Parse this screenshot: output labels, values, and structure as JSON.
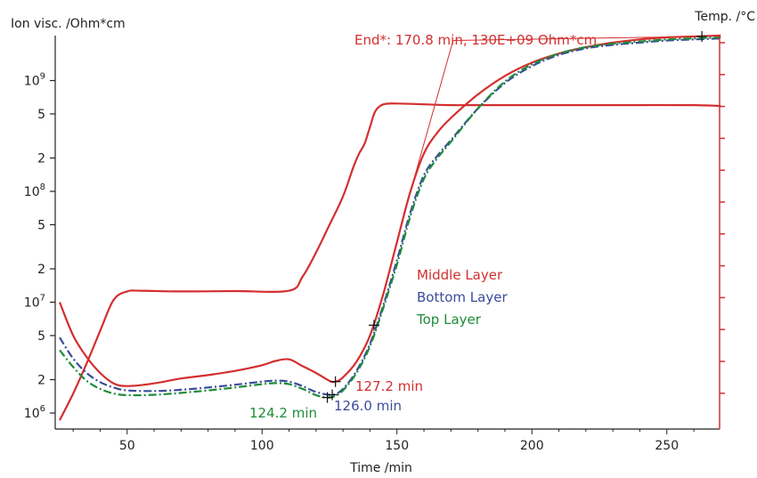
{
  "chart_data": {
    "type": "line",
    "xlabel": "Time /min",
    "ylabel_left": "Ion visc. /Ohm*cm",
    "ylabel_right": "Temp. /°C",
    "xlim": [
      25,
      270
    ],
    "ylim_log10": [
      5.92,
      9.42
    ],
    "x_ticks": [
      {
        "value": 50,
        "label": "50"
      },
      {
        "value": 100,
        "label": "100"
      },
      {
        "value": 150,
        "label": "150"
      },
      {
        "value": 200,
        "label": "200"
      },
      {
        "value": 250,
        "label": "250"
      }
    ],
    "y_ticks": [
      {
        "value": 1000000,
        "mant": "10",
        "exp": "6"
      },
      {
        "value": 2000000,
        "mant": "2",
        "exp": ""
      },
      {
        "value": 5000000,
        "mant": "5",
        "exp": ""
      },
      {
        "value": 10000000,
        "mant": "10",
        "exp": "7"
      },
      {
        "value": 20000000,
        "mant": "2",
        "exp": ""
      },
      {
        "value": 50000000,
        "mant": "5",
        "exp": ""
      },
      {
        "value": 100000000,
        "mant": "10",
        "exp": "8"
      },
      {
        "value": 200000000,
        "mant": "2",
        "exp": ""
      },
      {
        "value": 500000000,
        "mant": "5",
        "exp": ""
      },
      {
        "value": 1000000000,
        "mant": "10",
        "exp": "9"
      }
    ],
    "right_axis": {
      "color": "#d32f2f",
      "tick_count": 12,
      "labels_shown": false
    },
    "legend": {
      "position": "center-right",
      "entries": [
        {
          "label": "Middle Layer",
          "color": "#d32f2f"
        },
        {
          "label": "Bottom Layer",
          "color": "#3b4c9a"
        },
        {
          "label": "Top Layer",
          "color": "#1e8c3a"
        }
      ]
    },
    "series": [
      {
        "name": "Middle Layer",
        "axis": "left",
        "color": "#d32f2f",
        "style": "solid",
        "points": [
          [
            25,
            10000000
          ],
          [
            30,
            5000000
          ],
          [
            35,
            3200000
          ],
          [
            40,
            2300000
          ],
          [
            45,
            1850000
          ],
          [
            50,
            1750000
          ],
          [
            60,
            1850000
          ],
          [
            70,
            2050000
          ],
          [
            80,
            2200000
          ],
          [
            90,
            2400000
          ],
          [
            100,
            2700000
          ],
          [
            105,
            2950000
          ],
          [
            110,
            3050000
          ],
          [
            115,
            2650000
          ],
          [
            120,
            2300000
          ],
          [
            125,
            1950000
          ],
          [
            127.2,
            1920000
          ],
          [
            130,
            2100000
          ],
          [
            135,
            2900000
          ],
          [
            140,
            5000000
          ],
          [
            145,
            12000000
          ],
          [
            150,
            35000000
          ],
          [
            155,
            100000000
          ],
          [
            160,
            220000000
          ],
          [
            165,
            340000000
          ],
          [
            170,
            460000000
          ],
          [
            180,
            750000000
          ],
          [
            190,
            1100000000
          ],
          [
            200,
            1450000000
          ],
          [
            210,
            1750000000
          ],
          [
            220,
            2000000000
          ],
          [
            230,
            2200000000
          ],
          [
            240,
            2350000000
          ],
          [
            250,
            2450000000
          ],
          [
            260,
            2500000000
          ],
          [
            270,
            2550000000
          ]
        ]
      },
      {
        "name": "Bottom Layer",
        "axis": "left",
        "color": "#3b4c9a",
        "style": "dashdot",
        "points": [
          [
            25,
            4800000
          ],
          [
            30,
            3100000
          ],
          [
            35,
            2300000
          ],
          [
            40,
            1900000
          ],
          [
            45,
            1700000
          ],
          [
            50,
            1600000
          ],
          [
            60,
            1580000
          ],
          [
            70,
            1620000
          ],
          [
            80,
            1700000
          ],
          [
            90,
            1800000
          ],
          [
            100,
            1920000
          ],
          [
            105,
            1960000
          ],
          [
            110,
            1920000
          ],
          [
            115,
            1750000
          ],
          [
            120,
            1550000
          ],
          [
            126,
            1460000
          ],
          [
            130,
            1650000
          ],
          [
            135,
            2400000
          ],
          [
            140,
            4200000
          ],
          [
            145,
            9500000
          ],
          [
            150,
            24000000
          ],
          [
            155,
            65000000
          ],
          [
            160,
            140000000
          ],
          [
            165,
            210000000
          ],
          [
            170,
            290000000
          ],
          [
            180,
            560000000
          ],
          [
            190,
            950000000
          ],
          [
            200,
            1350000000
          ],
          [
            210,
            1700000000
          ],
          [
            220,
            1950000000
          ],
          [
            230,
            2100000000
          ],
          [
            240,
            2200000000
          ],
          [
            250,
            2300000000
          ],
          [
            260,
            2350000000
          ],
          [
            270,
            2400000000
          ]
        ]
      },
      {
        "name": "Top Layer",
        "axis": "left",
        "color": "#1e8c3a",
        "style": "dashdot",
        "points": [
          [
            25,
            3700000
          ],
          [
            30,
            2600000
          ],
          [
            35,
            1950000
          ],
          [
            40,
            1650000
          ],
          [
            45,
            1500000
          ],
          [
            50,
            1450000
          ],
          [
            60,
            1460000
          ],
          [
            70,
            1520000
          ],
          [
            80,
            1600000
          ],
          [
            90,
            1700000
          ],
          [
            100,
            1820000
          ],
          [
            105,
            1860000
          ],
          [
            110,
            1820000
          ],
          [
            115,
            1650000
          ],
          [
            120,
            1450000
          ],
          [
            124.2,
            1380000
          ],
          [
            127,
            1420000
          ],
          [
            130,
            1600000
          ],
          [
            135,
            2300000
          ],
          [
            140,
            4000000
          ],
          [
            145,
            9000000
          ],
          [
            150,
            22000000
          ],
          [
            155,
            60000000
          ],
          [
            160,
            130000000
          ],
          [
            165,
            200000000
          ],
          [
            170,
            280000000
          ],
          [
            180,
            560000000
          ],
          [
            190,
            980000000
          ],
          [
            200,
            1400000000
          ],
          [
            210,
            1750000000
          ],
          [
            220,
            2000000000
          ],
          [
            230,
            2150000000
          ],
          [
            240,
            2250000000
          ],
          [
            250,
            2350000000
          ],
          [
            260,
            2400000000
          ],
          [
            270,
            2450000000
          ]
        ]
      },
      {
        "name": "Temperature",
        "axis": "right",
        "color": "#d32f2f",
        "style": "solid",
        "points_on_left_scale": [
          [
            25,
            860000
          ],
          [
            30,
            1500000
          ],
          [
            35,
            2800000
          ],
          [
            40,
            5500000
          ],
          [
            45,
            10500000
          ],
          [
            50,
            12500000
          ],
          [
            55,
            12700000
          ],
          [
            70,
            12500000
          ],
          [
            90,
            12600000
          ],
          [
            110,
            12700000
          ],
          [
            115,
            17000000
          ],
          [
            120,
            28000000
          ],
          [
            125,
            50000000
          ],
          [
            130,
            90000000
          ],
          [
            134,
            170000000
          ],
          [
            136,
            220000000
          ],
          [
            138,
            270000000
          ],
          [
            140,
            380000000
          ],
          [
            142,
            530000000
          ],
          [
            145,
            610000000
          ],
          [
            150,
            620000000
          ],
          [
            160,
            610000000
          ],
          [
            170,
            600000000
          ],
          [
            180,
            600000000
          ],
          [
            200,
            600000000
          ],
          [
            220,
            600000000
          ],
          [
            240,
            600000000
          ],
          [
            260,
            600000000
          ],
          [
            270,
            590000000
          ]
        ]
      }
    ],
    "markers": [
      {
        "series": "Middle Layer",
        "x": 127.2,
        "y": 1920000
      },
      {
        "series": "Bottom Layer",
        "x": 126.0,
        "y": 1460000
      },
      {
        "series": "Top Layer",
        "x": 124.2,
        "y": 1380000
      },
      {
        "series": "Middle Layer",
        "x": 141.5,
        "y": 6200000
      },
      {
        "series": "Middle Layer",
        "x": 263,
        "y": 2500000000
      }
    ],
    "annotations": [
      {
        "text": "127.2 min",
        "color": "#d32f2f",
        "anchor_x": 127.2,
        "anchor_y": 1920000
      },
      {
        "text": "126.0 min",
        "color": "#3b4c9a",
        "anchor_x": 126.0,
        "anchor_y": 1460000
      },
      {
        "text": "124.2 min",
        "color": "#1e8c3a",
        "anchor_x": 124.2,
        "anchor_y": 1380000
      },
      {
        "text": "End*: 170.8 min, 130E+09 Ohm*cm",
        "color": "#d32f2f",
        "anchor_x": 170.8,
        "anchor_y": 2300000000
      }
    ],
    "leader_line": {
      "from": {
        "x": 170.8,
        "y": 2300000000
      },
      "to_a": {
        "x": 263,
        "y": 2500000000
      },
      "to_b": {
        "x": 155,
        "y": 100000000
      }
    }
  }
}
